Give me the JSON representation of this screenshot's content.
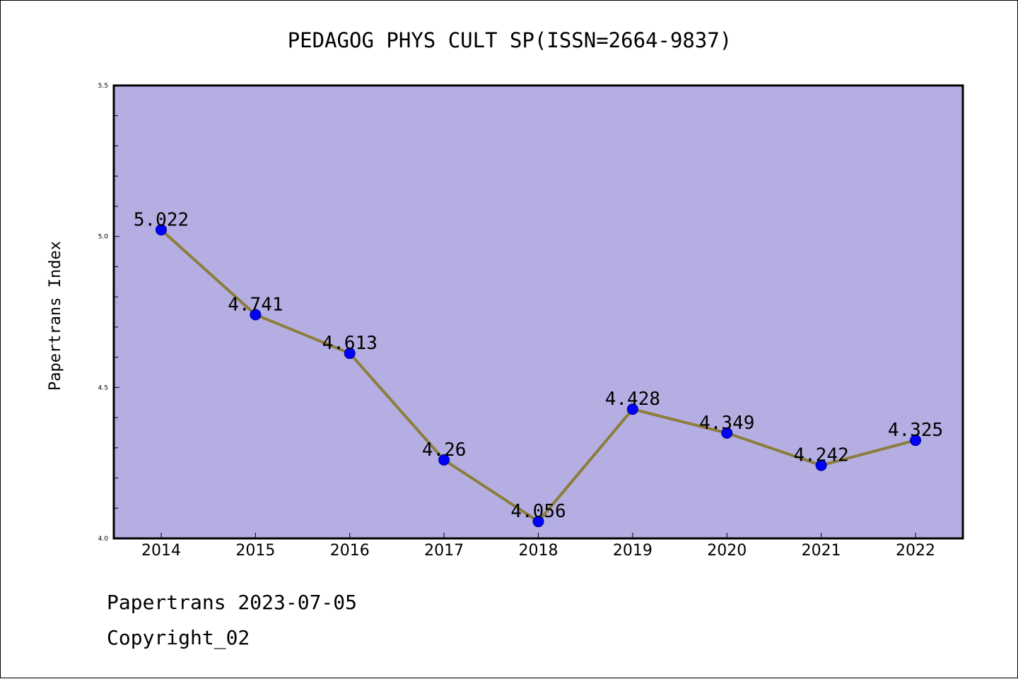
{
  "chart_data": {
    "type": "line",
    "title": "PEDAGOG PHYS CULT SP(ISSN=2664-9837)",
    "xlabel": "",
    "ylabel": "Papertrans Index",
    "categories": [
      "2014",
      "2015",
      "2016",
      "2017",
      "2018",
      "2019",
      "2020",
      "2021",
      "2022"
    ],
    "values": [
      5.022,
      4.741,
      4.613,
      4.26,
      4.056,
      4.428,
      4.349,
      4.242,
      4.325
    ],
    "data_labels": [
      "5.022",
      "4.741",
      "4.613",
      "4.26",
      "4.056",
      "4.428",
      "4.349",
      "4.242",
      "4.325"
    ],
    "ylim": [
      4.0,
      5.5
    ],
    "yticks": [
      4.0,
      4.5,
      5.0,
      5.5
    ],
    "ytick_labels": [
      "4.0",
      "4.5",
      "5.0",
      "5.5"
    ],
    "minor_ytick_step": 0.1,
    "grid": false,
    "colors": {
      "plot_background": "#b5aee2",
      "line": "#8b7d3a",
      "marker": "#0000ff",
      "marker_edge": "#00008b"
    }
  },
  "footer": {
    "line1": "Papertrans 2023-07-05",
    "line2": "Copyright_02"
  }
}
